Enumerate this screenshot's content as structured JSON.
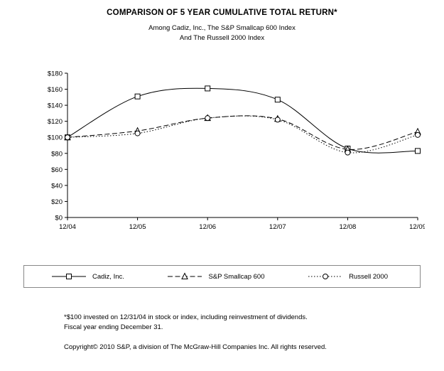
{
  "header": {
    "title": "COMPARISON OF 5 YEAR CUMULATIVE TOTAL RETURN*",
    "subtitle1": "Among Cadiz, Inc., The S&P Smallcap 600 Index",
    "subtitle2": "And The Russell 2000 Index"
  },
  "chart_data": {
    "type": "line",
    "title": "COMPARISON OF 5 YEAR CUMULATIVE TOTAL RETURN*",
    "x": [
      "12/04",
      "12/05",
      "12/06",
      "12/07",
      "12/08",
      "12/09"
    ],
    "series": [
      {
        "name": "Cadiz, Inc.",
        "marker": "square",
        "line": "solid",
        "values": [
          100,
          151,
          161,
          147,
          86,
          83
        ]
      },
      {
        "name": "S&P Smallcap 600",
        "marker": "triangle",
        "line": "dashed",
        "values": [
          100,
          108,
          124,
          123,
          85,
          107
        ]
      },
      {
        "name": "Russell 2000",
        "marker": "circle",
        "line": "dotted",
        "values": [
          100,
          105,
          124,
          122,
          81,
          103
        ]
      }
    ],
    "ylim": [
      0,
      180
    ],
    "ytick_step": 20,
    "ytick_prefix": "$",
    "grid": false,
    "legend_position": "bottom",
    "line_color": "#000000"
  },
  "footnotes": {
    "line1": "*$100 invested on 12/31/04 in stock or index, including reinvestment of dividends.",
    "line2": "Fiscal year ending December 31.",
    "copyright": "Copyright© 2010 S&P, a division of The McGraw-Hill Companies Inc. All rights reserved."
  }
}
